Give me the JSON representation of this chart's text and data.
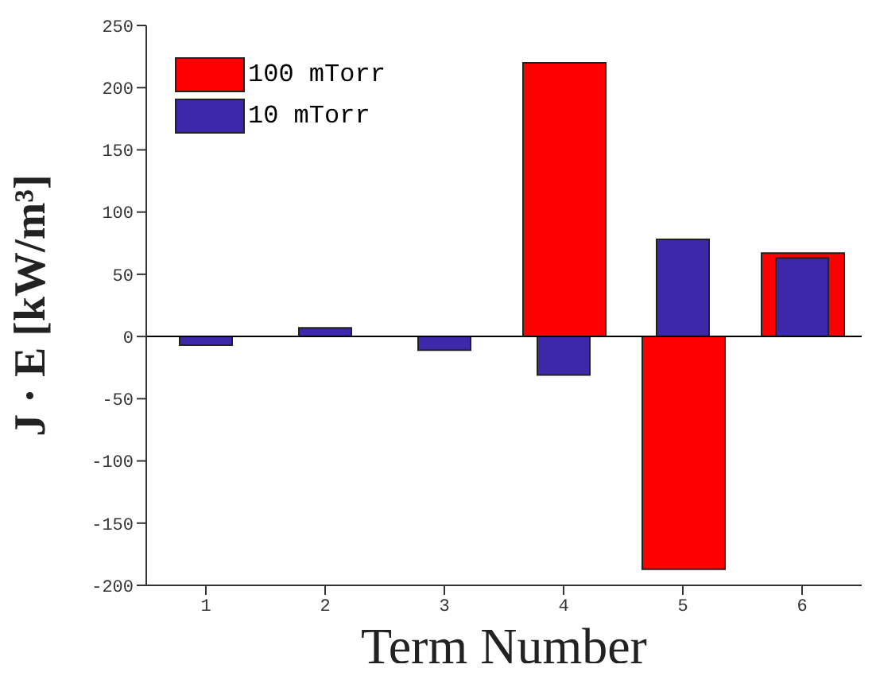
{
  "chart_data": {
    "type": "bar",
    "xlabel": "Term Number",
    "ylabel": "J · E [kW/m³]",
    "categories": [
      "1",
      "2",
      "3",
      "4",
      "5",
      "6"
    ],
    "series": [
      {
        "name": "100 mTorr",
        "color": "#ff0000",
        "values": [
          0,
          0,
          0,
          220,
          -187,
          67
        ]
      },
      {
        "name": "10 mTorr",
        "color": "#3c28a8",
        "values": [
          -7,
          7,
          -11,
          -31,
          78,
          63
        ]
      }
    ],
    "ylim": [
      -200,
      250
    ],
    "yticks": [
      -200,
      -150,
      -100,
      -50,
      0,
      50,
      100,
      150,
      200,
      250
    ],
    "ref_lines": [
      {
        "axis": "y",
        "value": 0,
        "color": "#000000"
      }
    ],
    "grid": false,
    "legend": "top left"
  }
}
